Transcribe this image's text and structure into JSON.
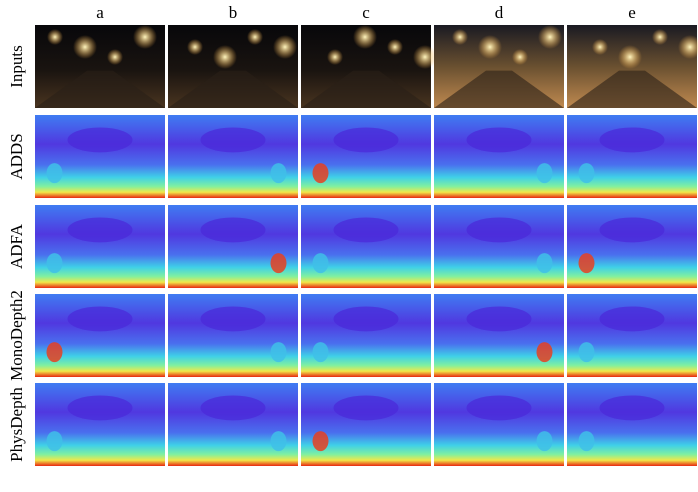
{
  "column_labels": [
    "a",
    "b",
    "c",
    "d",
    "e"
  ],
  "row_labels": [
    "Inputs",
    "ADDS",
    "ADFA",
    "MonoDepth2",
    "PhysDepth"
  ]
}
